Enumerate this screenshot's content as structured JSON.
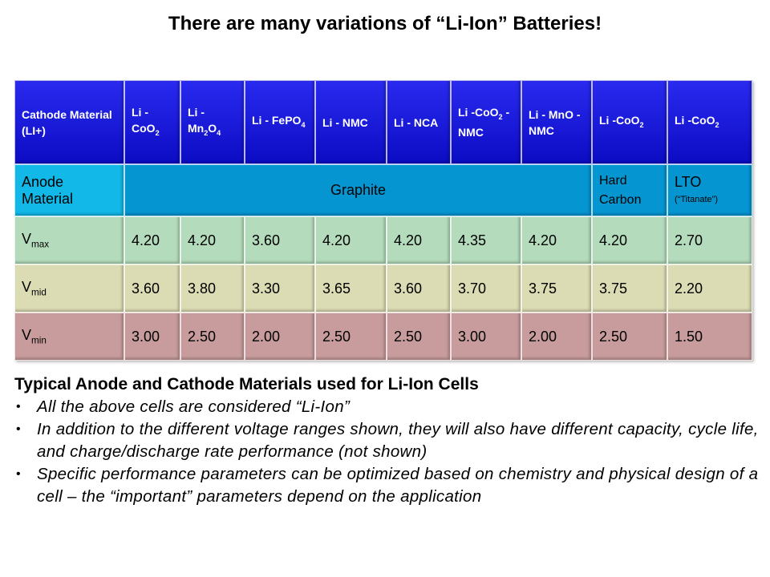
{
  "title": "There are many variations of “Li-Ion” Batteries!",
  "table": {
    "header": [
      [
        {
          "text": "Cathode Material (LI+)"
        }
      ],
      [
        {
          "text": "Li - CoO"
        },
        {
          "sub": "2"
        }
      ],
      [
        {
          "text": "Li - Mn"
        },
        {
          "sub": "2"
        },
        {
          "text": "O"
        },
        {
          "sub": "4"
        }
      ],
      [
        {
          "text": "Li - FePO"
        },
        {
          "sub": "4"
        }
      ],
      [
        {
          "text": "Li - NMC"
        }
      ],
      [
        {
          "text": "Li - NCA"
        }
      ],
      [
        {
          "text": "Li -CoO"
        },
        {
          "sub": "2"
        },
        {
          "text": " - NMC"
        }
      ],
      [
        {
          "text": "Li - MnO - NMC"
        }
      ],
      [
        {
          "text": "Li -CoO"
        },
        {
          "sub": "2"
        }
      ],
      [
        {
          "text": "Li -CoO"
        },
        {
          "sub": "2"
        }
      ]
    ],
    "anode": {
      "label": "Anode Material",
      "graphite": "Graphite",
      "hard_carbon": "Hard Carbon",
      "lto": "LTO",
      "lto_note": "(“Titanate”)"
    },
    "rows": [
      {
        "label": [
          {
            "text": "V"
          },
          {
            "sub": "max"
          }
        ],
        "values": [
          "4.20",
          "4.20",
          "3.60",
          "4.20",
          "4.20",
          "4.35",
          "4.20",
          "4.20",
          "2.70"
        ]
      },
      {
        "label": [
          {
            "text": "V"
          },
          {
            "sub": "mid"
          }
        ],
        "values": [
          "3.60",
          "3.80",
          "3.30",
          "3.65",
          "3.60",
          "3.70",
          "3.75",
          "3.75",
          "2.20"
        ]
      },
      {
        "label": [
          {
            "text": "V"
          },
          {
            "sub": "min"
          }
        ],
        "values": [
          "3.00",
          "2.50",
          "2.00",
          "2.50",
          "2.50",
          "3.00",
          "2.00",
          "2.50",
          "1.50"
        ]
      }
    ]
  },
  "notes": {
    "heading": "Typical Anode and Cathode Materials used for Li-Ion Cells",
    "bullets": [
      "All the above cells are considered “Li-Ion”",
      "In addition to the different voltage ranges shown, they will also have different  capacity, cycle life, and charge/discharge rate performance (not shown)",
      "Specific performance parameters can be optimized  based on chemistry and physical design of a cell – the “important” parameters depend on the application"
    ]
  }
}
